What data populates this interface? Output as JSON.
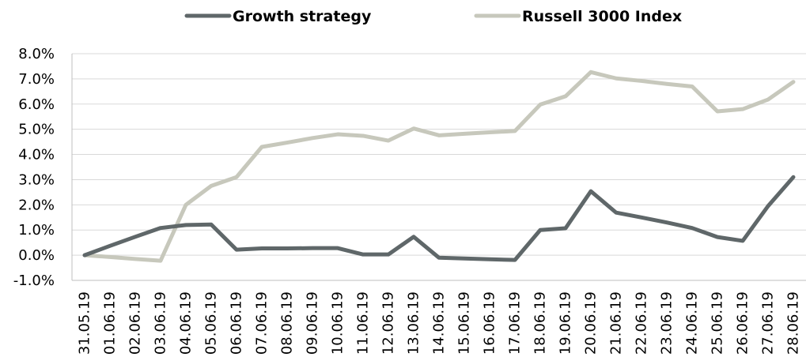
{
  "chart_data": {
    "type": "line",
    "title": "",
    "xlabel": "",
    "ylabel": "",
    "ylim": [
      -1,
      8
    ],
    "yticks": [
      -1,
      0,
      1,
      2,
      3,
      4,
      5,
      6,
      7,
      8
    ],
    "ytick_labels": [
      "-1.0%",
      "0.0%",
      "1.0%",
      "2.0%",
      "3.0%",
      "4.0%",
      "5.0%",
      "6.0%",
      "7.0%",
      "8.0%"
    ],
    "grid": true,
    "legend_position": "top",
    "categories": [
      "31.05.19",
      "01.06.19",
      "02.06.19",
      "03.06.19",
      "04.06.19",
      "05.06.19",
      "06.06.19",
      "07.06.19",
      "08.06.19",
      "09.06.19",
      "10.06.19",
      "11.06.19",
      "12.06.19",
      "13.06.19",
      "14.06.19",
      "15.06.19",
      "16.06.19",
      "17.06.19",
      "18.06.19",
      "19.06.19",
      "20.06.19",
      "21.06.19",
      "22.06.19",
      "23.06.19",
      "24.06.19",
      "25.06.19",
      "26.06.19",
      "27.06.19",
      "28.06.19"
    ],
    "series": [
      {
        "name": "Growth strategy",
        "color": "#5f6769",
        "values": [
          0.0,
          0.37,
          0.73,
          1.08,
          1.2,
          1.22,
          0.22,
          0.27,
          0.27,
          0.28,
          0.28,
          0.03,
          0.03,
          0.73,
          -0.1,
          -0.13,
          -0.16,
          -0.19,
          1.0,
          1.07,
          2.54,
          1.69,
          1.5,
          1.3,
          1.08,
          0.72,
          0.57,
          1.95,
          3.1
        ]
      },
      {
        "name": "Russell 3000 Index",
        "color": "#c7c8bc",
        "values": [
          0.0,
          -0.07,
          -0.15,
          -0.22,
          2.0,
          2.75,
          3.1,
          4.3,
          4.47,
          4.65,
          4.8,
          4.74,
          4.55,
          5.03,
          4.76,
          4.82,
          4.88,
          4.93,
          5.98,
          6.31,
          7.27,
          7.02,
          6.92,
          6.8,
          6.7,
          5.71,
          5.8,
          6.18,
          6.88
        ]
      }
    ]
  }
}
